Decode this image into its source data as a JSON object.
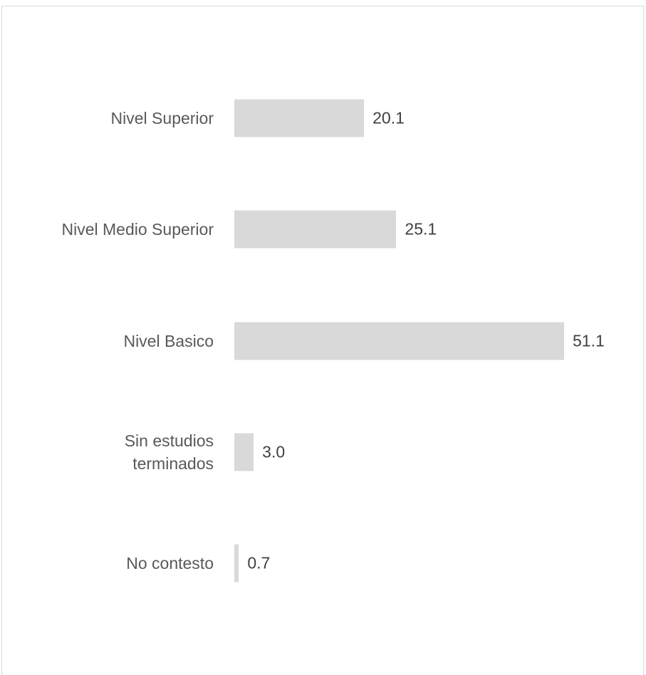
{
  "chart_data": {
    "type": "bar",
    "orientation": "horizontal",
    "categories": [
      "Nivel Superior",
      "Nivel Medio Superior",
      "Nivel Basico",
      "Sin estudios\nterminados",
      "No contesto"
    ],
    "values": [
      20.1,
      25.1,
      51.1,
      3.0,
      0.7
    ],
    "value_labels": [
      "20.1",
      "25.1",
      "51.1",
      "3.0",
      "0.7"
    ],
    "color": "#d9d9d9"
  }
}
